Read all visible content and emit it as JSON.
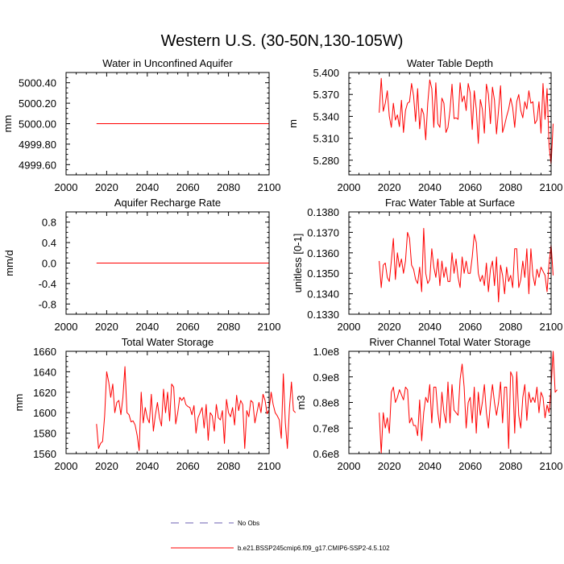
{
  "title": "Western U.S. (30-50N,130-105W)",
  "legend": {
    "items": [
      {
        "label": "No Obs",
        "color": "#6b62b3",
        "style": "dashed"
      },
      {
        "label": "b.e21.BSSP245cmip6.f09_g17.CMIP6-SSP2-4.5.102",
        "color": "#ff0000",
        "style": "solid"
      }
    ]
  },
  "chart_data": [
    {
      "type": "line",
      "title": "Water in Unconfined Aquifer",
      "ylabel": "mm",
      "xlim": [
        2000,
        2100
      ],
      "ylim": [
        4999.5,
        5000.5
      ],
      "xticks": [
        "2000",
        "2020",
        "2040",
        "2060",
        "2080",
        "2100"
      ],
      "yticks": [
        4999.6,
        4999.8,
        5000.0,
        5000.2,
        5000.4
      ],
      "ytick_labels": [
        "4999.60",
        "4999.80",
        "5000.00",
        "5000.20",
        "5000.40"
      ],
      "series": [
        {
          "color": "#ff0000",
          "x": [
            2015,
            2100
          ],
          "values": [
            5000.0,
            5000.0
          ]
        }
      ]
    },
    {
      "type": "line",
      "title": "Water Table Depth",
      "ylabel": "m",
      "xlim": [
        2000,
        2100
      ],
      "ylim": [
        5.26,
        5.4
      ],
      "xticks": [
        "2000",
        "2020",
        "2040",
        "2060",
        "2080",
        "2100"
      ],
      "yticks": [
        5.28,
        5.31,
        5.34,
        5.37,
        5.4
      ],
      "ytick_labels": [
        "5.280",
        "5.310",
        "5.340",
        "5.370",
        "5.400"
      ],
      "series": [
        {
          "color": "#ff0000",
          "x_start": 2015,
          "values": [
            5.345,
            5.392,
            5.347,
            5.358,
            5.375,
            5.34,
            5.325,
            5.358,
            5.335,
            5.342,
            5.326,
            5.362,
            5.318,
            5.348,
            5.358,
            5.36,
            5.385,
            5.368,
            5.333,
            5.378,
            5.323,
            5.351,
            5.343,
            5.308,
            5.358,
            5.39,
            5.378,
            5.325,
            5.386,
            5.33,
            5.325,
            5.365,
            5.358,
            5.318,
            5.325,
            5.348,
            5.384,
            5.337,
            5.338,
            5.336,
            5.386,
            5.36,
            5.368,
            5.348,
            5.385,
            5.372,
            5.322,
            5.375,
            5.35,
            5.303,
            5.363,
            5.35,
            5.317,
            5.384,
            5.37,
            5.33,
            5.38,
            5.362,
            5.316,
            5.348,
            5.382,
            5.318,
            5.328,
            5.34,
            5.35,
            5.365,
            5.352,
            5.325,
            5.36,
            5.37,
            5.348,
            5.338,
            5.36,
            5.35,
            5.375,
            5.358,
            5.36,
            5.33,
            5.335,
            5.36,
            5.317,
            5.385,
            5.336,
            5.378,
            5.3,
            5.274,
            5.33
          ]
        }
      ]
    },
    {
      "type": "line",
      "title": "Aquifer Recharge Rate",
      "ylabel": "mm/d",
      "xlim": [
        2000,
        2100
      ],
      "ylim": [
        -1.0,
        1.0
      ],
      "xticks": [
        "2000",
        "2020",
        "2040",
        "2060",
        "2080",
        "2100"
      ],
      "yticks": [
        -0.8,
        -0.4,
        0.0,
        0.4,
        0.8
      ],
      "ytick_labels": [
        "-0.8",
        "-0.4",
        "0.0",
        "0.4",
        "0.8"
      ],
      "series": [
        {
          "color": "#ff0000",
          "x": [
            2015,
            2100
          ],
          "values": [
            0.0,
            0.0
          ]
        }
      ]
    },
    {
      "type": "line",
      "title": "Frac Water Table at Surface",
      "ylabel": "unitless [0-1]",
      "xlim": [
        2000,
        2100
      ],
      "ylim": [
        0.133,
        0.138
      ],
      "xticks": [
        "2000",
        "2020",
        "2040",
        "2060",
        "2080",
        "2100"
      ],
      "yticks": [
        0.133,
        0.134,
        0.135,
        0.136,
        0.137,
        0.138
      ],
      "ytick_labels": [
        "0.1330",
        "0.1340",
        "0.1350",
        "0.1360",
        "0.1370",
        "0.1380"
      ],
      "series": [
        {
          "color": "#ff0000",
          "x_start": 2015,
          "values": [
            0.1356,
            0.1343,
            0.1354,
            0.1355,
            0.1348,
            0.1346,
            0.1356,
            0.1367,
            0.1347,
            0.136,
            0.1353,
            0.1357,
            0.135,
            0.1356,
            0.137,
            0.1367,
            0.1354,
            0.1352,
            0.1347,
            0.1345,
            0.1353,
            0.1341,
            0.1372,
            0.135,
            0.1345,
            0.1347,
            0.1362,
            0.1353,
            0.1348,
            0.1357,
            0.1344,
            0.1356,
            0.1348,
            0.1353,
            0.1346,
            0.1346,
            0.136,
            0.135,
            0.1357,
            0.1348,
            0.1343,
            0.1358,
            0.135,
            0.1356,
            0.135,
            0.135,
            0.1358,
            0.1369,
            0.1365,
            0.135,
            0.1346,
            0.1349,
            0.1344,
            0.1355,
            0.1341,
            0.1352,
            0.1356,
            0.1344,
            0.1358,
            0.1336,
            0.1354,
            0.1349,
            0.134,
            0.1353,
            0.1346,
            0.1349,
            0.1343,
            0.1362,
            0.1362,
            0.1343,
            0.1347,
            0.1356,
            0.1348,
            0.1362,
            0.134,
            0.1362,
            0.1349,
            0.1344,
            0.1352,
            0.1348,
            0.1353,
            0.1351,
            0.1349,
            0.1341,
            0.1355,
            0.1364,
            0.1349
          ]
        }
      ]
    },
    {
      "type": "line",
      "title": "Total Water Storage",
      "ylabel": "mm",
      "xlim": [
        2000,
        2100
      ],
      "ylim": [
        1560,
        1660
      ],
      "xticks": [
        "2000",
        "2020",
        "2040",
        "2060",
        "2080",
        "2100"
      ],
      "yticks": [
        1560,
        1580,
        1600,
        1620,
        1640,
        1660
      ],
      "ytick_labels": [
        "1560",
        "1580",
        "1600",
        "1620",
        "1640",
        "1660"
      ],
      "series": [
        {
          "color": "#ff0000",
          "x_start": 2015,
          "values": [
            1589,
            1565,
            1570,
            1572,
            1597,
            1640,
            1630,
            1615,
            1628,
            1600,
            1610,
            1612,
            1598,
            1615,
            1645,
            1600,
            1598,
            1591,
            1592,
            1588,
            1578,
            1563,
            1620,
            1590,
            1605,
            1595,
            1590,
            1618,
            1582,
            1598,
            1610,
            1595,
            1587,
            1623,
            1600,
            1620,
            1592,
            1628,
            1625,
            1589,
            1600,
            1615,
            1612,
            1615,
            1608,
            1606,
            1605,
            1598,
            1607,
            1580,
            1595,
            1600,
            1605,
            1585,
            1608,
            1573,
            1600,
            1597,
            1582,
            1608,
            1595,
            1593,
            1602,
            1570,
            1613,
            1600,
            1596,
            1605,
            1588,
            1617,
            1602,
            1612,
            1608,
            1565,
            1602,
            1596,
            1612,
            1610,
            1590,
            1600,
            1610,
            1600,
            1618,
            1612,
            1599,
            1603,
            1620,
            1608,
            1600,
            1597,
            1593,
            1575,
            1638,
            1590,
            1565,
            1604,
            1630,
            1602,
            1600
          ]
        }
      ]
    },
    {
      "type": "line",
      "title": "River Channel Total Water Storage",
      "ylabel": "m3",
      "xlim": [
        2000,
        2100
      ],
      "ylim": [
        0.6,
        1.0
      ],
      "xticks": [
        "2000",
        "2020",
        "2040",
        "2060",
        "2080",
        "2100"
      ],
      "yticks": [
        0.6,
        0.7,
        0.8,
        0.9,
        1.0
      ],
      "ytick_labels": [
        "0.6e8",
        "0.7e8",
        "0.8e8",
        "0.9e8",
        "1.0e8"
      ],
      "series": [
        {
          "color": "#ff0000",
          "x_start": 2015,
          "values": [
            0.76,
            0.6,
            0.76,
            0.7,
            0.74,
            0.68,
            0.84,
            0.86,
            0.8,
            0.82,
            0.85,
            0.83,
            0.81,
            0.86,
            0.85,
            0.72,
            0.74,
            0.71,
            0.71,
            0.67,
            0.81,
            0.65,
            0.76,
            0.82,
            0.8,
            0.87,
            0.72,
            0.86,
            0.86,
            0.76,
            0.7,
            0.84,
            0.76,
            0.72,
            0.88,
            0.72,
            0.87,
            0.77,
            0.76,
            0.75,
            0.89,
            0.95,
            0.86,
            0.7,
            0.8,
            0.82,
            0.72,
            0.86,
            0.68,
            0.84,
            0.75,
            0.8,
            0.87,
            0.76,
            0.7,
            0.8,
            0.87,
            0.8,
            0.75,
            0.8,
            0.88,
            0.72,
            0.86,
            0.86,
            0.62,
            0.92,
            0.9,
            0.68,
            0.92,
            0.75,
            0.7,
            0.82,
            0.87,
            0.73,
            0.84,
            0.8,
            0.82,
            0.8,
            0.86,
            0.76,
            0.84,
            0.82,
            0.74,
            0.79,
            0.76,
            0.86,
            1.0,
            0.84,
            0.85
          ]
        }
      ]
    }
  ]
}
